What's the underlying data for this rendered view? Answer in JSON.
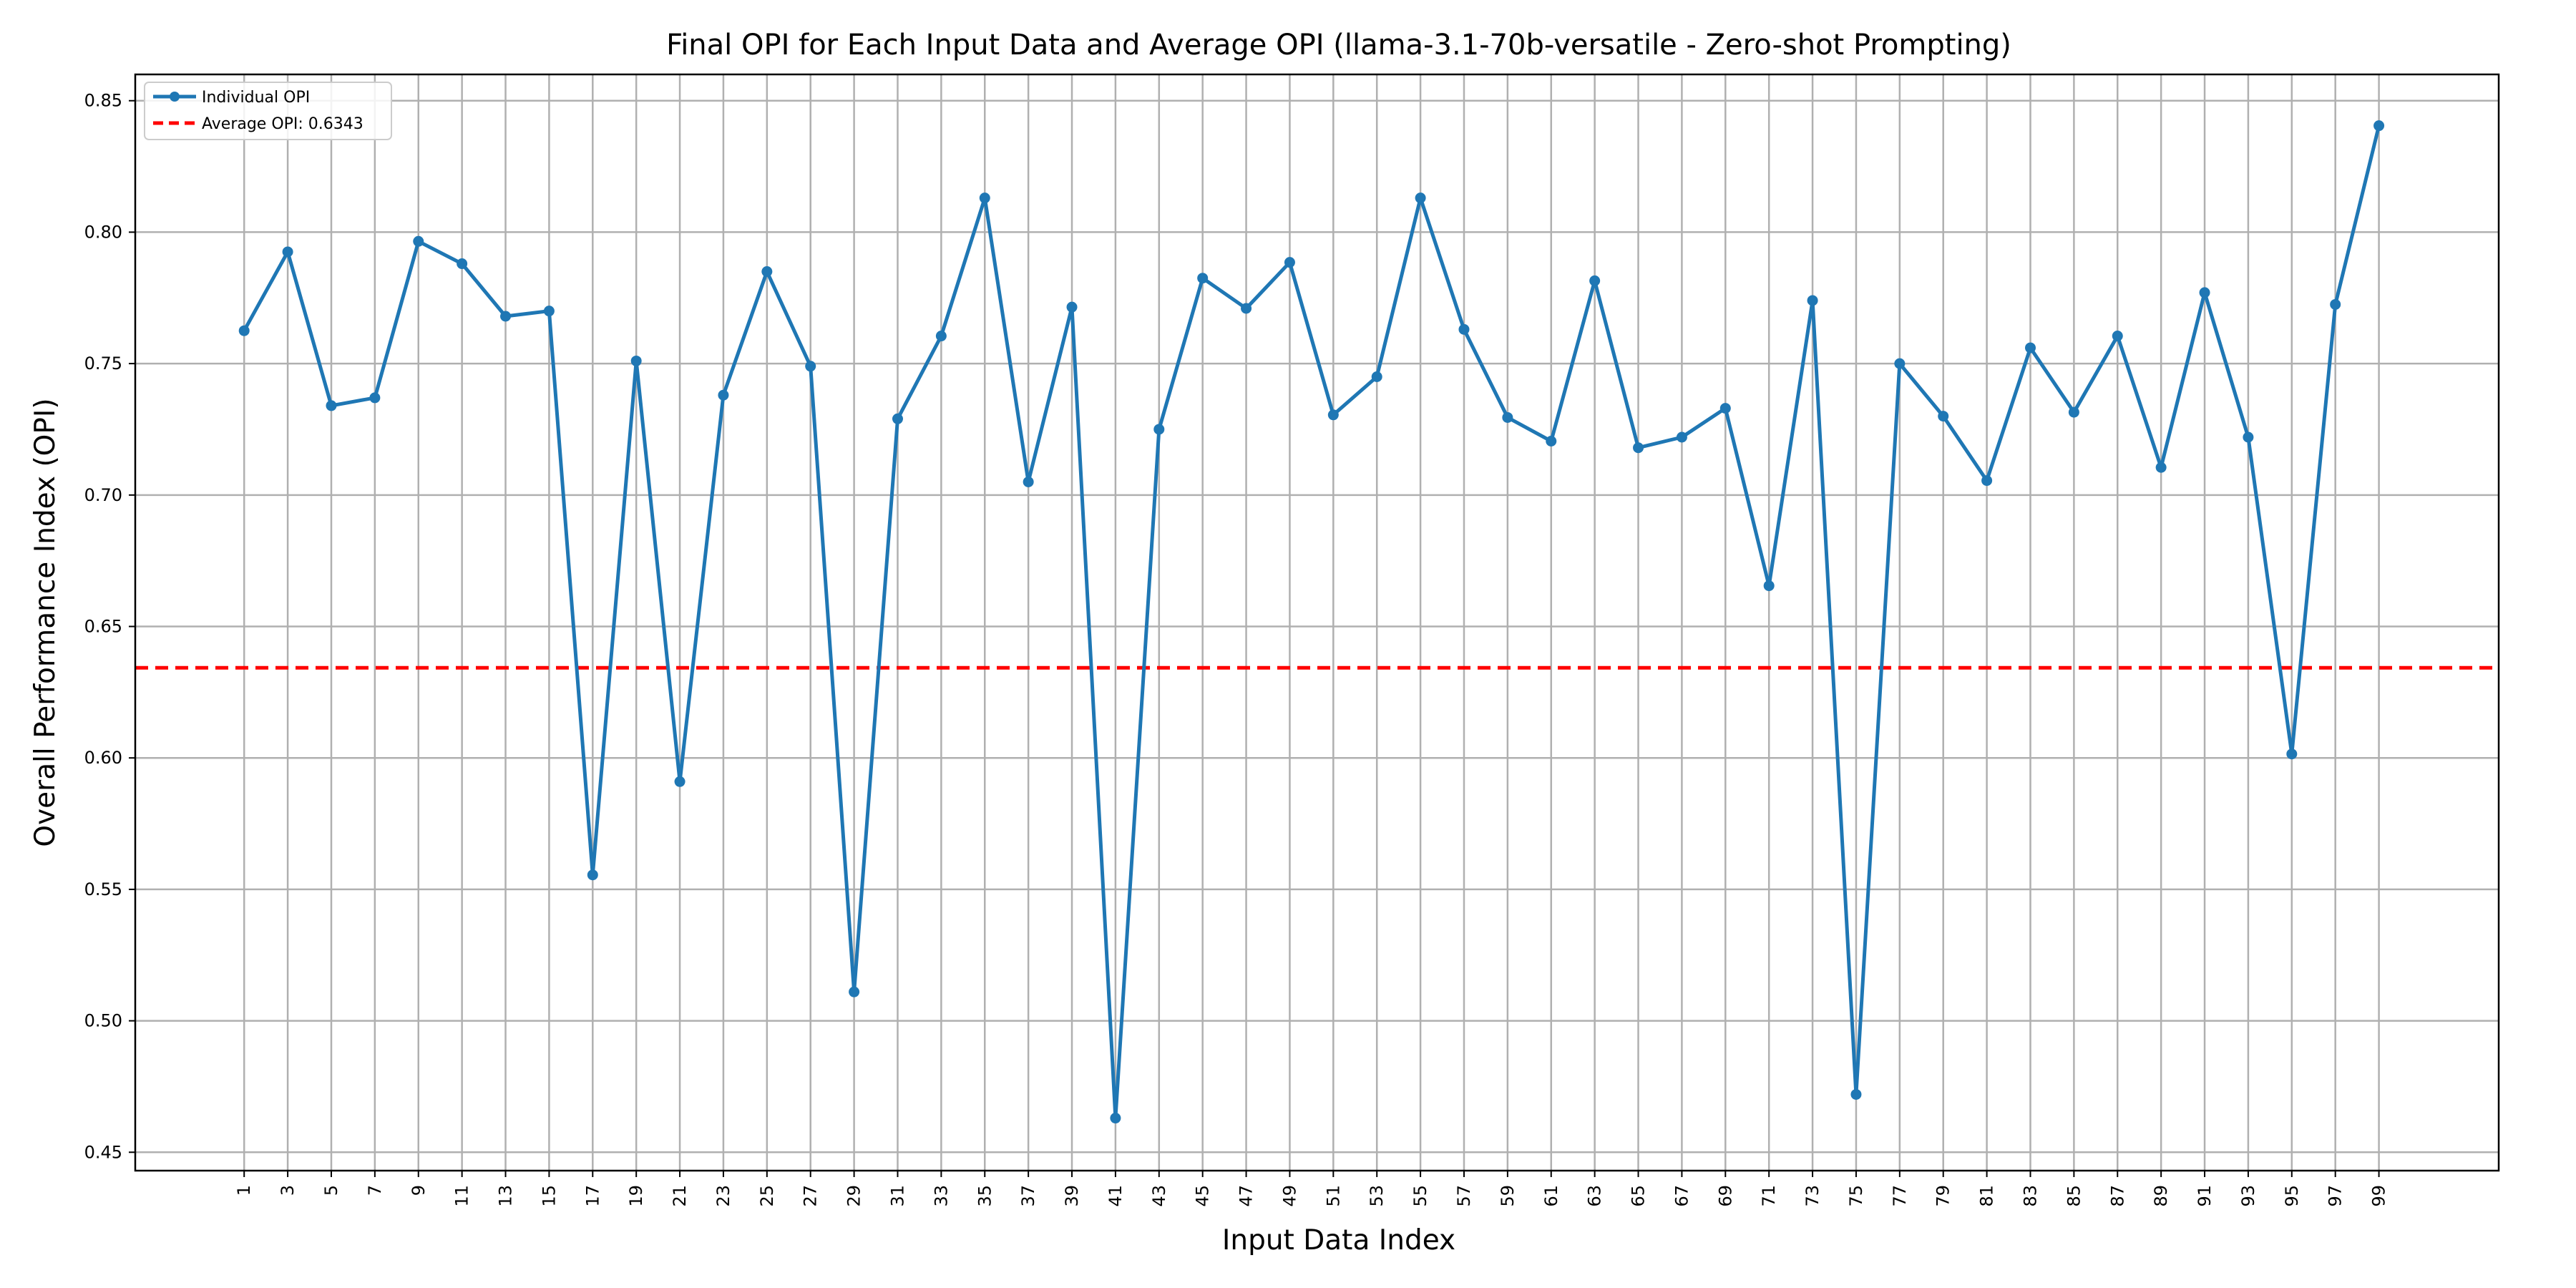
{
  "chart_data": {
    "type": "line",
    "title": "Final OPI for Each Input Data and Average OPI (llama-3.1-70b-versatile - Zero-shot Prompting)",
    "xlabel": "Input Data Index",
    "ylabel": "Overall Performance Index (OPI)",
    "x": [
      1,
      3,
      5,
      7,
      9,
      11,
      13,
      15,
      17,
      19,
      21,
      23,
      25,
      27,
      29,
      31,
      33,
      35,
      37,
      39,
      41,
      43,
      45,
      47,
      49,
      51,
      53,
      55,
      57,
      59,
      61,
      63,
      65,
      67,
      69,
      71,
      73,
      75,
      77,
      79,
      81,
      83,
      85,
      87,
      89,
      91,
      93,
      95,
      97,
      99
    ],
    "x_tick_labels": [
      "1",
      "3",
      "5",
      "7",
      "9",
      "11",
      "13",
      "15",
      "17",
      "19",
      "21",
      "23",
      "25",
      "27",
      "29",
      "31",
      "33",
      "35",
      "37",
      "39",
      "41",
      "43",
      "45",
      "47",
      "49",
      "51",
      "53",
      "55",
      "57",
      "59",
      "61",
      "63",
      "65",
      "67",
      "69",
      "71",
      "73",
      "75",
      "77",
      "79",
      "81",
      "83",
      "85",
      "87",
      "89",
      "91",
      "93",
      "95",
      "97",
      "99"
    ],
    "series": [
      {
        "name": "Individual OPI",
        "color": "#1f77b4",
        "values": [
          0.7625,
          0.7925,
          0.734,
          0.737,
          0.7965,
          0.788,
          0.768,
          0.77,
          0.5555,
          0.751,
          0.591,
          0.738,
          0.785,
          0.749,
          0.511,
          0.729,
          0.7605,
          0.813,
          0.705,
          0.7715,
          0.463,
          0.725,
          0.7825,
          0.771,
          0.7885,
          0.7305,
          0.745,
          0.813,
          0.763,
          0.7295,
          0.7205,
          0.7815,
          0.718,
          0.722,
          0.733,
          0.6655,
          0.774,
          0.472,
          0.75,
          0.73,
          0.7055,
          0.756,
          0.7315,
          0.7605,
          0.7105,
          0.777,
          0.722,
          0.6015,
          0.7725,
          0.8405
        ]
      }
    ],
    "average": {
      "name": "Average OPI: 0.6343",
      "value": 0.6343,
      "color": "#ff0000",
      "style": "dashed"
    },
    "xlim": [
      -4.0,
      104.5
    ],
    "ylim": [
      0.443,
      0.86
    ],
    "y_ticks": [
      0.45,
      0.5,
      0.55,
      0.6,
      0.65,
      0.7,
      0.75,
      0.8,
      0.85
    ],
    "y_tick_labels": [
      "0.45",
      "0.50",
      "0.55",
      "0.60",
      "0.65",
      "0.70",
      "0.75",
      "0.80",
      "0.85"
    ],
    "grid": true,
    "legend_position": "top-left"
  }
}
